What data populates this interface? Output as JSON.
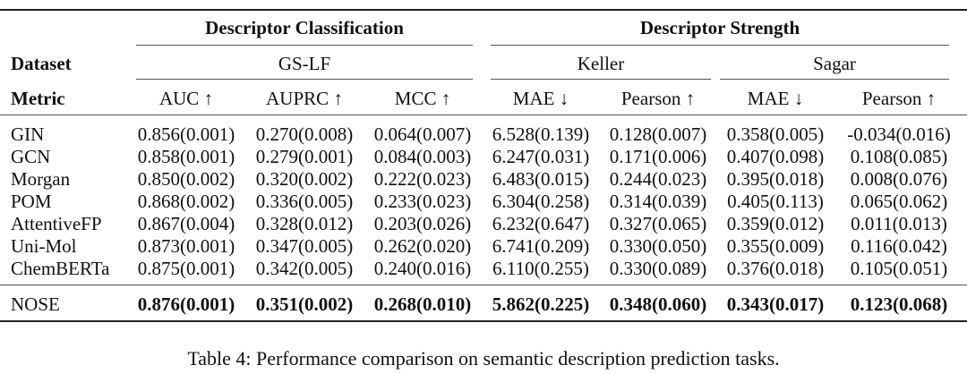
{
  "table": {
    "groups": {
      "classification": "Descriptor Classification",
      "strength": "Descriptor Strength"
    },
    "dataset_label": "Dataset",
    "metric_label": "Metric",
    "datasets": [
      "GS-LF",
      "Keller",
      "Sagar"
    ],
    "metrics": [
      "AUC ↑",
      "AUPRC ↑",
      "MCC ↑",
      "MAE ↓",
      "Pearson ↑",
      "MAE ↓",
      "Pearson ↑"
    ],
    "rows": [
      {
        "name": "GIN",
        "values": [
          "0.856(0.001)",
          "0.270(0.008)",
          "0.064(0.007)",
          "6.528(0.139)",
          "0.128(0.007)",
          "0.358(0.005)",
          "-0.034(0.016)"
        ]
      },
      {
        "name": "GCN",
        "values": [
          "0.858(0.001)",
          "0.279(0.001)",
          "0.084(0.003)",
          "6.247(0.031)",
          "0.171(0.006)",
          "0.407(0.098)",
          "0.108(0.085)"
        ]
      },
      {
        "name": "Morgan",
        "values": [
          "0.850(0.002)",
          "0.320(0.002)",
          "0.222(0.023)",
          "6.483(0.015)",
          "0.244(0.023)",
          "0.395(0.018)",
          "0.008(0.076)"
        ]
      },
      {
        "name": "POM",
        "values": [
          "0.868(0.002)",
          "0.336(0.005)",
          "0.233(0.023)",
          "6.304(0.258)",
          "0.314(0.039)",
          "0.405(0.113)",
          "0.065(0.062)"
        ]
      },
      {
        "name": "AttentiveFP",
        "values": [
          "0.867(0.004)",
          "0.328(0.012)",
          "0.203(0.026)",
          "6.232(0.647)",
          "0.327(0.065)",
          "0.359(0.012)",
          "0.011(0.013)"
        ]
      },
      {
        "name": "Uni-Mol",
        "values": [
          "0.873(0.001)",
          "0.347(0.005)",
          "0.262(0.020)",
          "6.741(0.209)",
          "0.330(0.050)",
          "0.355(0.009)",
          "0.116(0.042)"
        ]
      },
      {
        "name": "ChemBERTa",
        "values": [
          "0.875(0.001)",
          "0.342(0.005)",
          "0.240(0.016)",
          "6.110(0.255)",
          "0.330(0.089)",
          "0.376(0.018)",
          "0.105(0.051)"
        ]
      }
    ],
    "final_row": {
      "name": "NOSE",
      "values": [
        "0.876(0.001)",
        "0.351(0.002)",
        "0.268(0.010)",
        "5.862(0.225)",
        "0.348(0.060)",
        "0.343(0.017)",
        "0.123(0.068)"
      ]
    }
  },
  "caption": "Table 4: Performance comparison on semantic description prediction tasks."
}
